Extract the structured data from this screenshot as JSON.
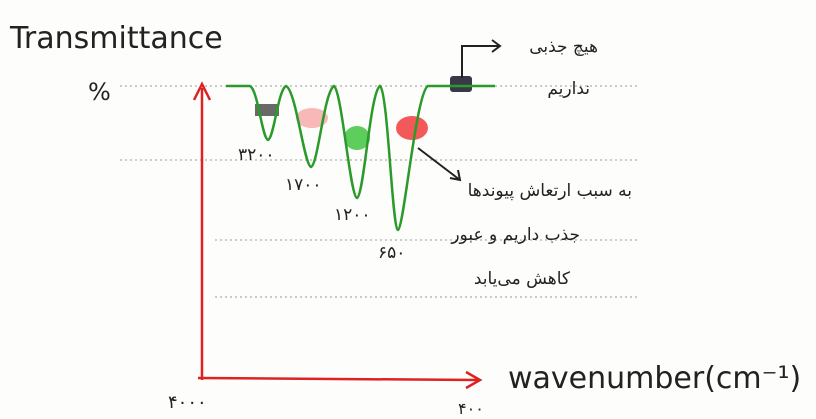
{
  "diagram": {
    "y_axis_label": "Transmittance",
    "y_axis_unit": "%",
    "x_axis_label": "wavenumber(cm⁻¹)",
    "x_start": "۴۰۰۰",
    "x_end": "۴۰۰",
    "peaks": [
      {
        "label": "۳۲۰۰"
      },
      {
        "label": "۱۷۰۰"
      },
      {
        "label": "۱۲۰۰"
      },
      {
        "label": "۶۵۰"
      }
    ],
    "note_no_absorption": [
      "هیچ جذبی",
      "نداریم"
    ],
    "note_absorption": [
      "به سبب ارتعاش پیوندها",
      "جذب داریم و عبور",
      "کاهش می‌یابد"
    ]
  }
}
